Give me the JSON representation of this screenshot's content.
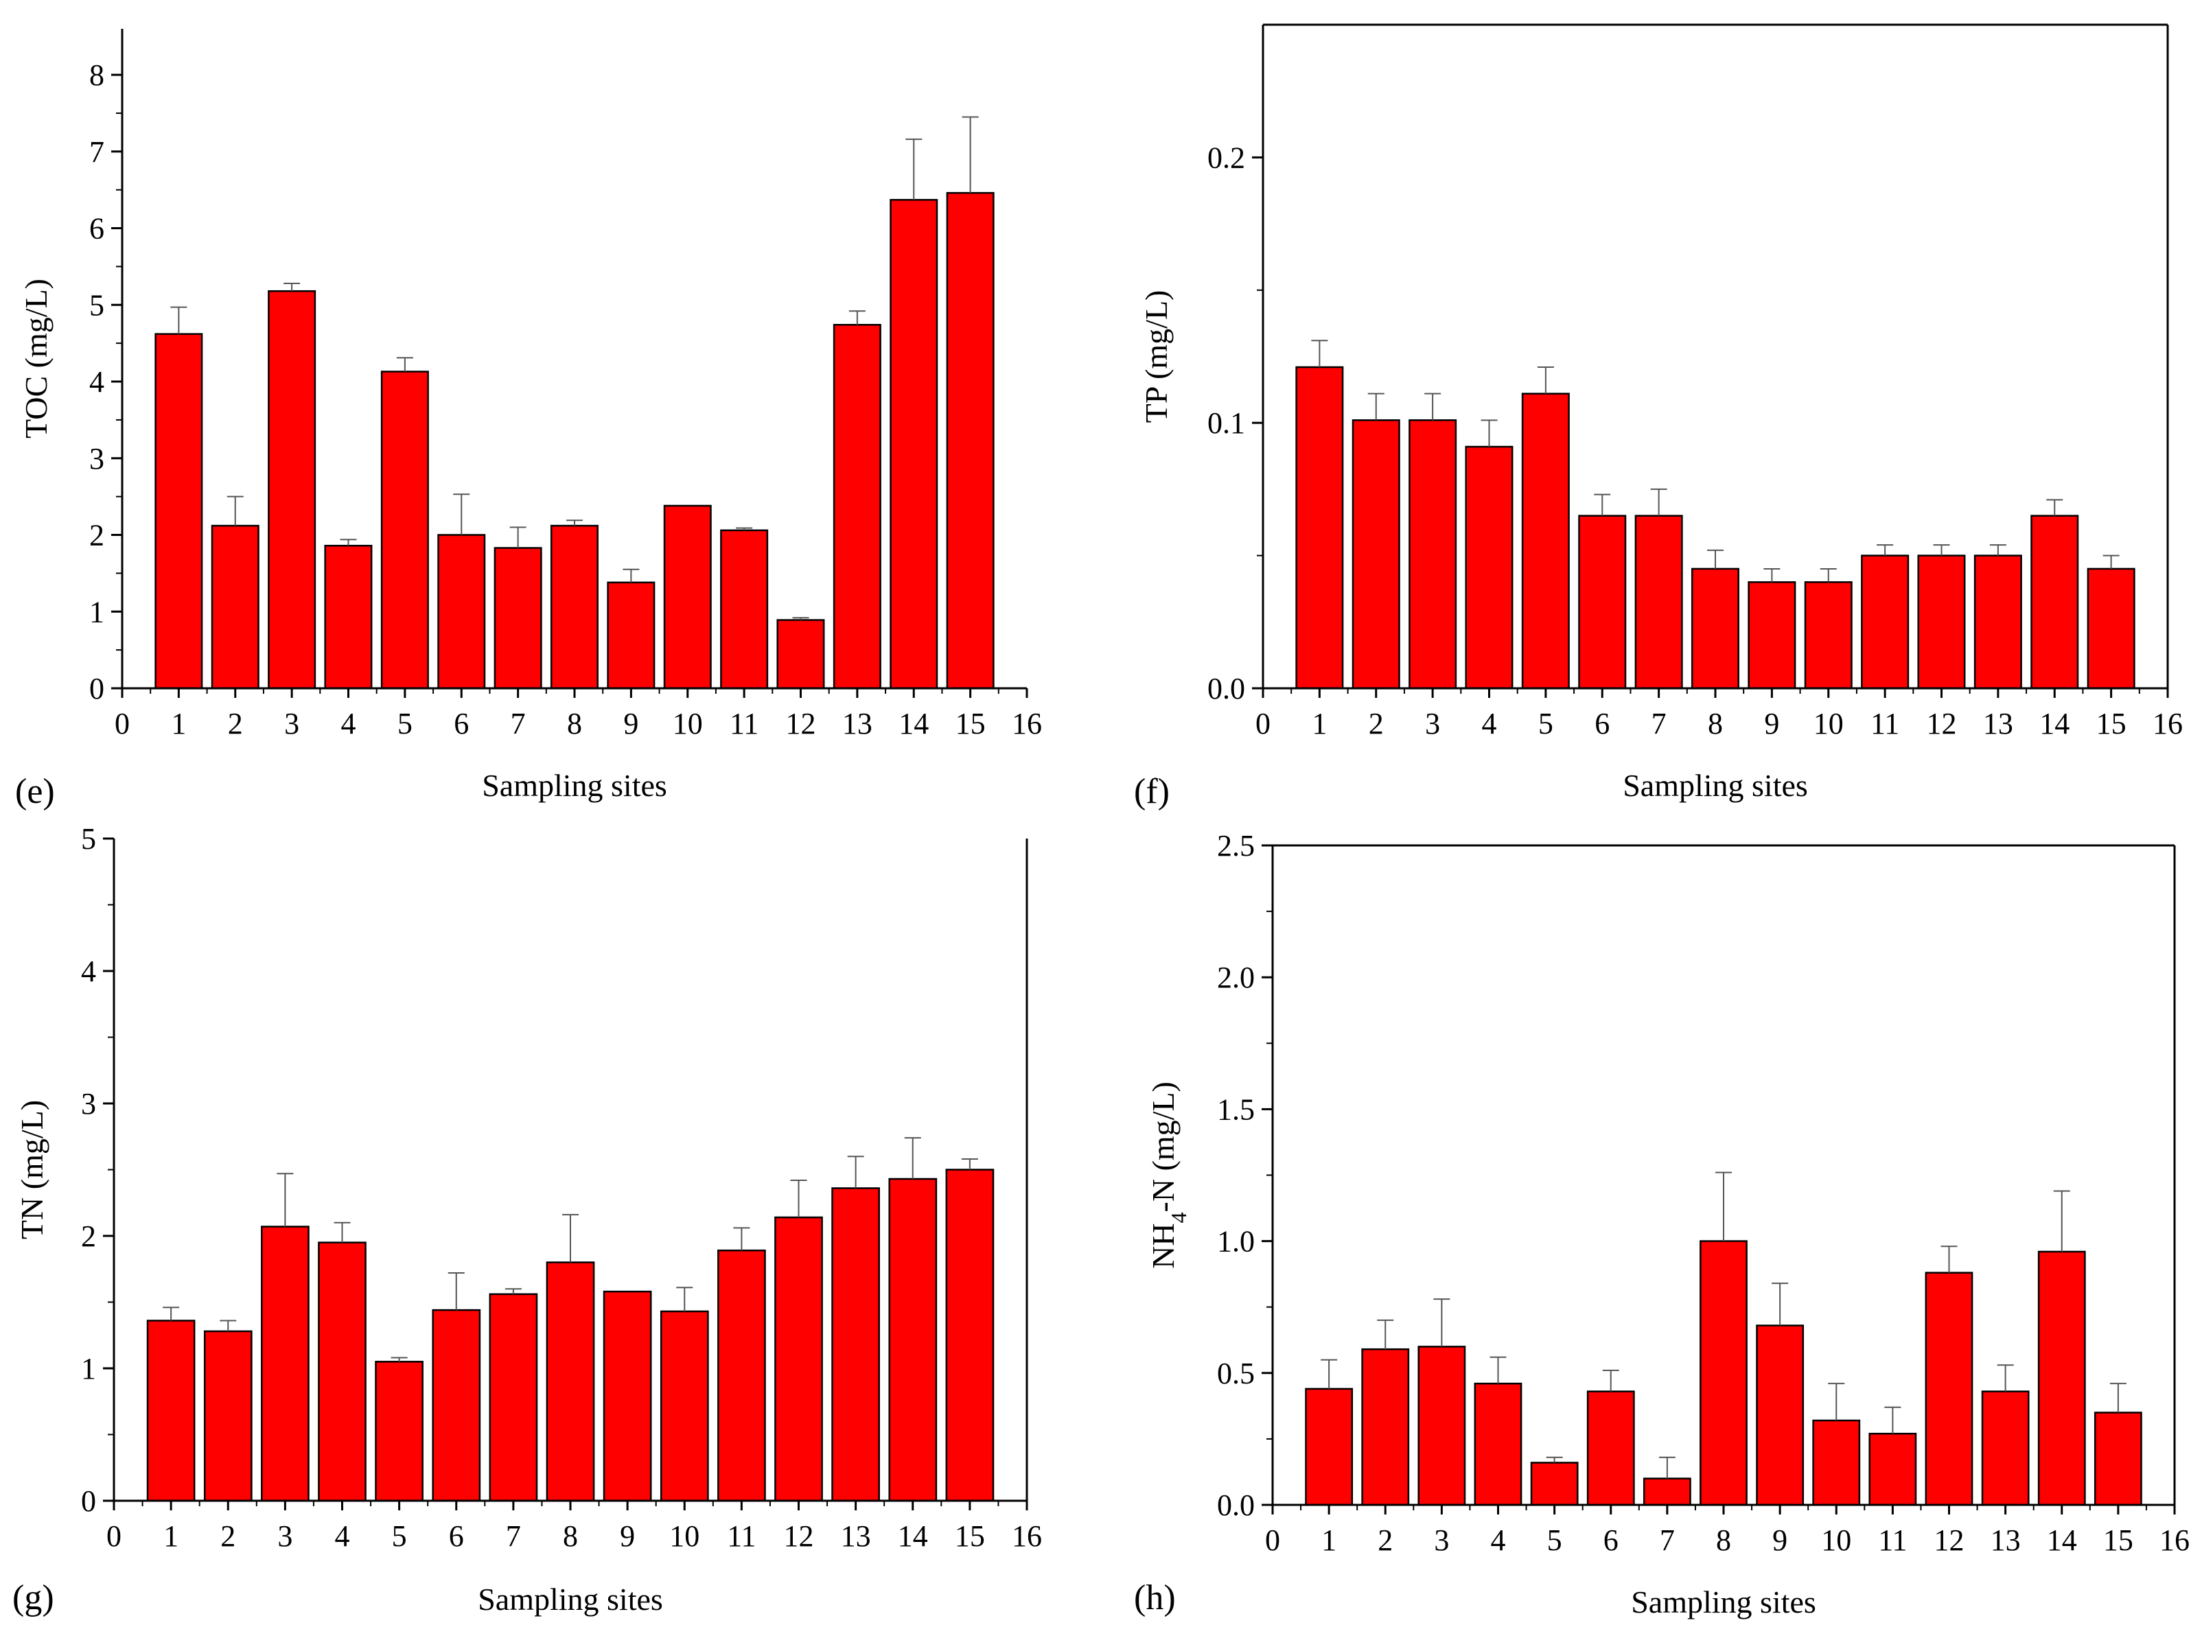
{
  "figure": {
    "bar_color": "#ff0000",
    "axis_color": "#000000"
  },
  "chart_data": [
    {
      "id": "e",
      "panel_label": "(e)",
      "type": "bar",
      "title": "",
      "xlabel": "Sampling sites",
      "ylabel": "TOC (mg/L)",
      "xlim": [
        0,
        16
      ],
      "ylim": [
        0,
        8.6
      ],
      "yticks": [
        "0",
        "1",
        "2",
        "3",
        "4",
        "5",
        "6",
        "7",
        "8"
      ],
      "xticks": [
        "0",
        "1",
        "2",
        "3",
        "4",
        "5",
        "6",
        "7",
        "8",
        "9",
        "10",
        "11",
        "12",
        "13",
        "14",
        "15",
        "16"
      ],
      "categories": [
        1,
        2,
        3,
        4,
        5,
        6,
        7,
        8,
        9,
        10,
        11,
        12,
        13,
        14,
        15
      ],
      "values": [
        4.62,
        2.12,
        5.18,
        1.86,
        4.13,
        2.0,
        1.83,
        2.12,
        1.38,
        2.38,
        2.06,
        0.89,
        4.74,
        6.37,
        6.46
      ],
      "errors": [
        0.35,
        0.38,
        0.1,
        0.08,
        0.18,
        0.53,
        0.27,
        0.07,
        0.17,
        0.0,
        0.03,
        0.03,
        0.18,
        0.79,
        0.99
      ]
    },
    {
      "id": "f",
      "panel_label": "(f)",
      "type": "bar",
      "title": "",
      "xlabel": "Sampling sites",
      "ylabel": "TP (mg/L)",
      "xlim": [
        0,
        16
      ],
      "ylim": [
        0,
        0.25
      ],
      "yticks": [
        "0.0",
        "0.1",
        "0.2"
      ],
      "xticks": [
        "0",
        "1",
        "2",
        "3",
        "4",
        "5",
        "6",
        "7",
        "8",
        "9",
        "10",
        "11",
        "12",
        "13",
        "14",
        "15",
        "16"
      ],
      "categories": [
        1,
        2,
        3,
        4,
        5,
        6,
        7,
        8,
        9,
        10,
        11,
        12,
        13,
        14,
        15
      ],
      "values": [
        0.121,
        0.101,
        0.101,
        0.091,
        0.111,
        0.065,
        0.065,
        0.045,
        0.04,
        0.04,
        0.05,
        0.05,
        0.05,
        0.065,
        0.045
      ],
      "errors": [
        0.01,
        0.01,
        0.01,
        0.01,
        0.01,
        0.008,
        0.01,
        0.007,
        0.005,
        0.005,
        0.004,
        0.004,
        0.004,
        0.006,
        0.005
      ]
    },
    {
      "id": "g",
      "panel_label": "(g)",
      "type": "bar",
      "title": "",
      "xlabel": "Sampling sites",
      "ylabel": "TN (mg/L)",
      "xlim": [
        0,
        16
      ],
      "ylim": [
        0,
        5
      ],
      "yticks": [
        "0",
        "1",
        "2",
        "3",
        "4",
        "5"
      ],
      "xticks": [
        "0",
        "1",
        "2",
        "3",
        "4",
        "5",
        "6",
        "7",
        "8",
        "9",
        "10",
        "11",
        "12",
        "13",
        "14",
        "15",
        "16"
      ],
      "categories": [
        1,
        2,
        3,
        4,
        5,
        6,
        7,
        8,
        9,
        10,
        11,
        12,
        13,
        14,
        15
      ],
      "values": [
        1.36,
        1.28,
        2.07,
        1.95,
        1.05,
        1.44,
        1.56,
        1.8,
        1.58,
        1.43,
        1.89,
        2.14,
        2.36,
        2.43,
        2.5
      ],
      "errors": [
        0.1,
        0.08,
        0.4,
        0.15,
        0.03,
        0.28,
        0.04,
        0.36,
        0.0,
        0.18,
        0.17,
        0.28,
        0.24,
        0.31,
        0.08
      ]
    },
    {
      "id": "h",
      "panel_label": "(h)",
      "type": "bar",
      "title": "",
      "xlabel": "Sampling sites",
      "ylabel": "NH4-N (mg/L)",
      "ylabel_parts": [
        "NH",
        "4",
        "-N (mg/L)"
      ],
      "xlim": [
        0,
        16
      ],
      "ylim": [
        0,
        2.5
      ],
      "yticks": [
        "0.0",
        "0.5",
        "1.0",
        "1.5",
        "2.0",
        "2.5"
      ],
      "xticks": [
        "0",
        "1",
        "2",
        "3",
        "4",
        "5",
        "6",
        "7",
        "8",
        "9",
        "10",
        "11",
        "12",
        "13",
        "14",
        "15",
        "16"
      ],
      "categories": [
        1,
        2,
        3,
        4,
        5,
        6,
        7,
        8,
        9,
        10,
        11,
        12,
        13,
        14,
        15
      ],
      "values": [
        0.44,
        0.59,
        0.6,
        0.46,
        0.16,
        0.43,
        0.1,
        1.0,
        0.68,
        0.32,
        0.27,
        0.88,
        0.43,
        0.96,
        0.35
      ],
      "errors": [
        0.11,
        0.11,
        0.18,
        0.1,
        0.02,
        0.08,
        0.08,
        0.26,
        0.16,
        0.14,
        0.1,
        0.1,
        0.1,
        0.23,
        0.11
      ]
    }
  ]
}
